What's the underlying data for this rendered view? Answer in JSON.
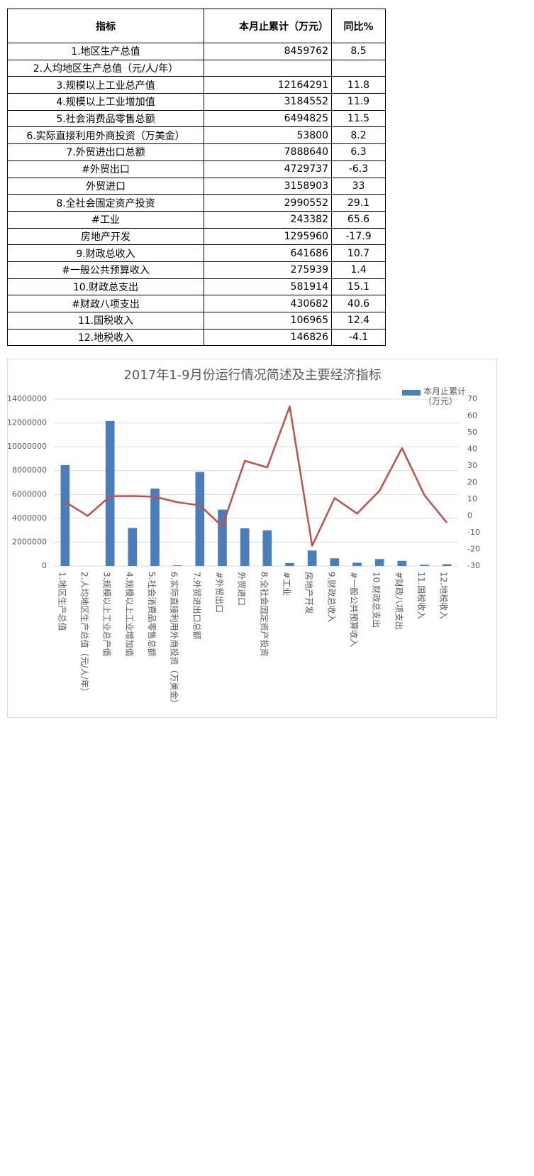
{
  "table": {
    "header": [
      "指标",
      "本月止累计（万元）",
      "同比%"
    ],
    "rows": [
      [
        "1.地区生产总值",
        8459762,
        8.5
      ],
      [
        "2.人均地区生产总值（元/人/年）",
        null,
        null
      ],
      [
        "3.规模以上工业总产值",
        12164291,
        11.8
      ],
      [
        "4.规模以上工业增加值",
        3184552,
        11.9
      ],
      [
        "5.社会消费品零售总额",
        6494825,
        11.5
      ],
      [
        "6.实际直接利用外商投资（万美金）",
        53800,
        8.2
      ],
      [
        "7.外贸进出口总额",
        7888640,
        6.3
      ],
      [
        "#外贸出口",
        4729737,
        -6.3
      ],
      [
        "外贸进口",
        3158903,
        33
      ],
      [
        "8.全社会固定资产投资",
        2990552,
        29.1
      ],
      [
        "#工业",
        243382,
        65.6
      ],
      [
        "房地产开发",
        1295960,
        -17.9
      ],
      [
        "9.财政总收入",
        641686,
        10.7
      ],
      [
        "#一般公共预算收入",
        275939,
        1.4
      ],
      [
        "10.财政总支出",
        581914,
        15.1
      ],
      [
        "#财政八项支出",
        430682,
        40.6
      ],
      [
        "11.国税收入",
        106965,
        12.4
      ],
      [
        "12.地税收入",
        146826,
        -4.1
      ]
    ]
  },
  "chart_data": {
    "type": "bar-line",
    "title": "2017年1-9月份运行情况简述及主要经济指标",
    "categories": [
      "1.地区生产总值",
      "2.人均地区生产总值（元/人/年）",
      "3.规模以上工业总产值",
      "4.规模以上工业增加值",
      "5.社会消费品零售总额",
      "6.实际直接利用外商投资（万美金）",
      "7.外贸进出口总额",
      "#外贸出口",
      "外贸进口",
      "8.全社会固定资产投资",
      "#工业",
      "房地产开发",
      "9.财政总收入",
      "#一般公共预算收入",
      "10.财政总支出",
      "#财政八项支出",
      "11.国税收入",
      "12.地税收入"
    ],
    "series": [
      {
        "name": "本月止累计（万元）",
        "color": "#4a7ebb",
        "values": [
          8459762,
          0,
          12164291,
          3184552,
          6494825,
          53800,
          7888640,
          4729737,
          3158903,
          2990552,
          243382,
          1295960,
          641686,
          275939,
          581914,
          430682,
          106965,
          146826
        ]
      },
      {
        "color": "#c0504d",
        "axis": "y2",
        "values": [
          8.5,
          0,
          11.8,
          11.9,
          11.5,
          8.2,
          6.3,
          -6.3,
          33,
          29.1,
          65.6,
          -17.9,
          10.7,
          1.4,
          15.1,
          40.6,
          12.4,
          -4.1
        ]
      }
    ],
    "ylim": [
      0,
      14000000
    ],
    "yticks": [
      0,
      2000000,
      4000000,
      6000000,
      8000000,
      10000000,
      12000000,
      14000000
    ],
    "y2lim": [
      -30,
      70
    ],
    "y2ticks": [
      -30,
      -20,
      -10,
      0,
      10,
      20,
      30,
      40,
      50,
      60,
      70
    ],
    "grid": true
  }
}
